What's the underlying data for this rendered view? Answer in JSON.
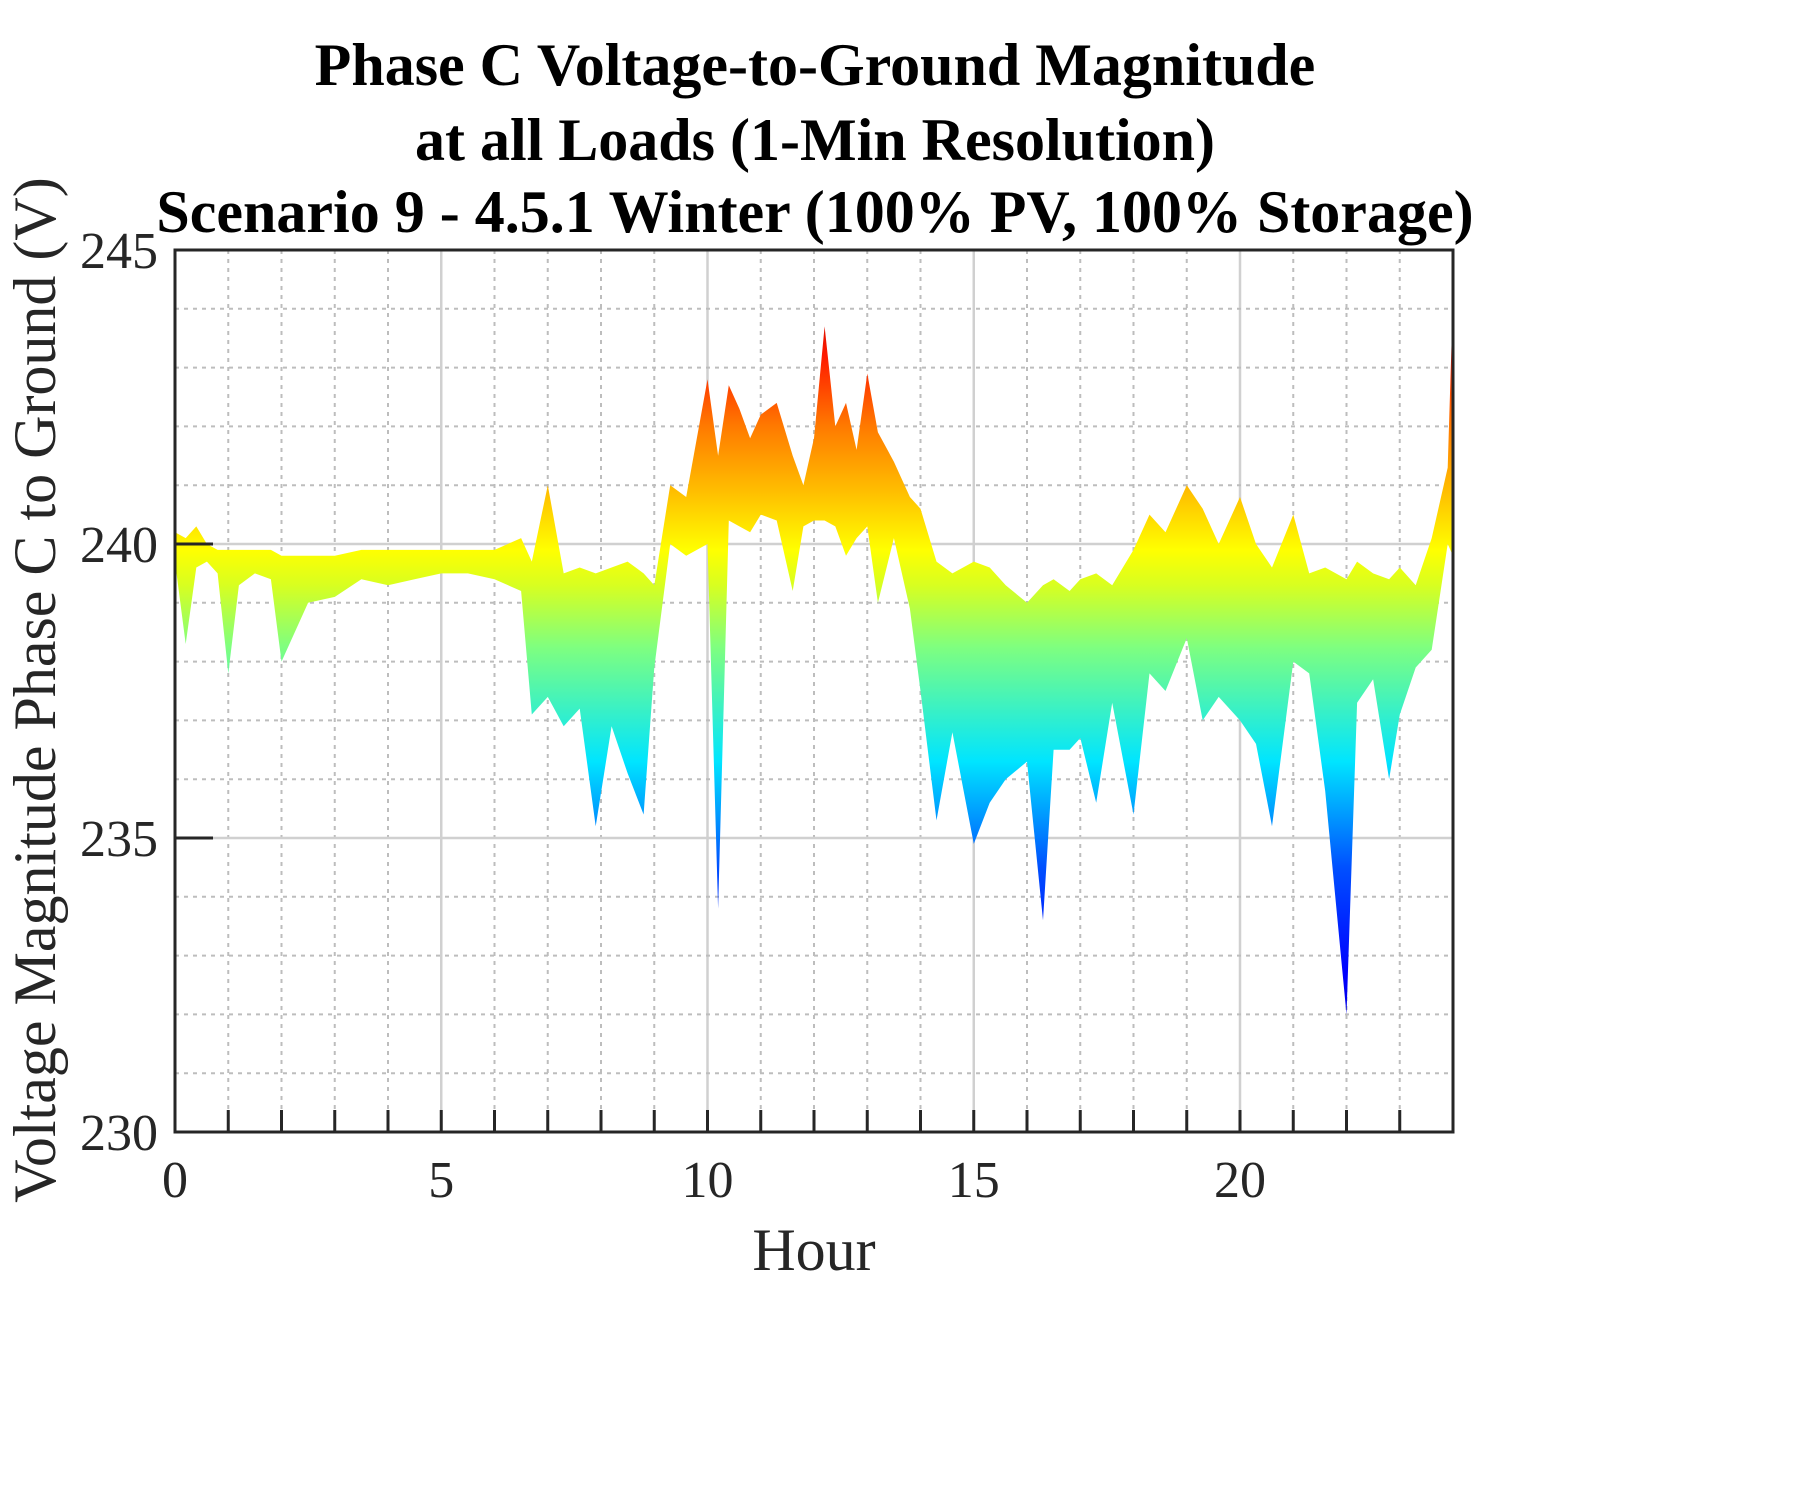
{
  "chart_data": {
    "type": "area",
    "title_lines": [
      "Phase C Voltage-to-Ground Magnitude",
      "at all Loads (1-Min Resolution)",
      "Scenario 9 - 4.5.1 Winter (100% PV, 100% Storage)"
    ],
    "xlabel": "Hour",
    "ylabel": "Voltage Magnitude Phase C to Ground (V)",
    "xlim": [
      0,
      24
    ],
    "ylim": [
      230,
      245
    ],
    "xticks": [
      "0",
      "5",
      "10",
      "15",
      "20"
    ],
    "yticks": [
      "230",
      "235",
      "240",
      "245"
    ],
    "grid": true,
    "colormap": "jet",
    "series": [
      {
        "x": [
          0,
          0.2,
          0.4,
          0.6,
          0.8,
          1.0,
          1.2,
          1.5,
          1.8,
          2.0,
          2.5,
          3.0,
          3.5,
          4.0,
          4.5,
          5.0,
          5.5,
          6.0,
          6.5,
          6.7,
          7.0,
          7.3,
          7.6,
          7.9,
          8.2,
          8.5,
          8.8,
          9.0,
          9.3,
          9.6,
          10.0,
          10.2,
          10.4,
          10.6,
          10.8,
          11.0,
          11.3,
          11.6,
          11.8,
          12.0,
          12.2,
          12.4,
          12.6,
          12.8,
          13.0,
          13.2,
          13.5,
          13.8,
          14.0,
          14.3,
          14.6,
          15.0,
          15.3,
          15.6,
          16.0,
          16.3,
          16.5,
          16.8,
          17.0,
          17.3,
          17.6,
          18.0,
          18.3,
          18.6,
          19.0,
          19.3,
          19.6,
          20.0,
          20.3,
          20.6,
          21.0,
          21.3,
          21.6,
          22.0,
          22.2,
          22.5,
          22.8,
          23.0,
          23.3,
          23.6,
          23.9,
          24.0
        ],
        "upper": [
          240.2,
          240.1,
          240.3,
          240.0,
          239.9,
          239.9,
          239.9,
          239.9,
          239.9,
          239.8,
          239.8,
          239.8,
          239.9,
          239.9,
          239.9,
          239.9,
          239.9,
          239.9,
          240.1,
          239.7,
          241.0,
          239.5,
          239.6,
          239.5,
          239.6,
          239.7,
          239.5,
          239.3,
          241.0,
          240.8,
          242.8,
          241.5,
          242.7,
          242.3,
          241.8,
          242.2,
          242.4,
          241.5,
          241.0,
          241.8,
          243.7,
          242.0,
          242.4,
          241.6,
          242.9,
          241.9,
          241.4,
          240.8,
          240.6,
          239.7,
          239.5,
          239.7,
          239.6,
          239.3,
          239.0,
          239.3,
          239.4,
          239.2,
          239.4,
          239.5,
          239.3,
          239.9,
          240.5,
          240.2,
          241.0,
          240.6,
          240.0,
          240.8,
          240.0,
          239.6,
          240.5,
          239.5,
          239.6,
          239.4,
          239.7,
          239.5,
          239.4,
          239.6,
          239.3,
          240.1,
          241.3,
          244.2
        ],
        "lower": [
          239.7,
          238.3,
          239.6,
          239.7,
          239.5,
          237.8,
          239.3,
          239.5,
          239.4,
          238.0,
          239.0,
          239.1,
          239.4,
          239.3,
          239.4,
          239.5,
          239.5,
          239.4,
          239.2,
          237.1,
          237.4,
          236.9,
          237.2,
          235.2,
          236.9,
          236.1,
          235.4,
          237.9,
          240.0,
          239.8,
          240.0,
          233.8,
          240.4,
          240.3,
          240.2,
          240.5,
          240.4,
          239.2,
          240.3,
          240.4,
          240.4,
          240.3,
          239.8,
          240.1,
          240.3,
          239.0,
          240.1,
          238.9,
          237.5,
          235.3,
          236.8,
          234.9,
          235.6,
          236.0,
          236.3,
          233.6,
          236.5,
          236.5,
          236.7,
          235.6,
          237.3,
          235.4,
          237.8,
          237.5,
          238.4,
          237.0,
          237.4,
          237.0,
          236.6,
          235.2,
          238.0,
          237.8,
          235.8,
          232.0,
          237.3,
          237.7,
          236.0,
          237.1,
          237.9,
          238.2,
          240.0,
          239.8
        ]
      }
    ]
  }
}
